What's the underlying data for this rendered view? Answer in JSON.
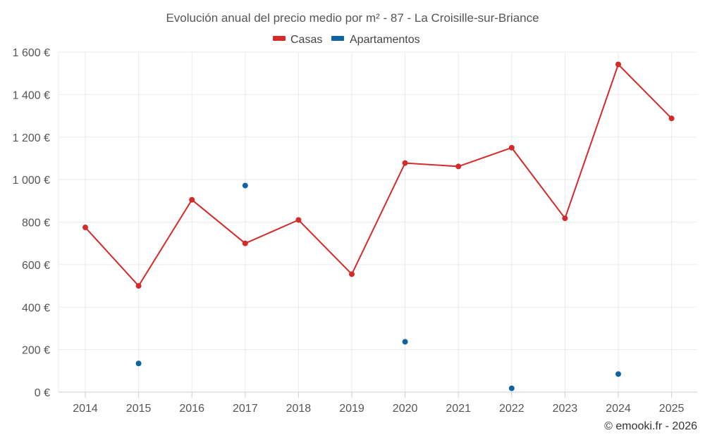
{
  "chart_data": {
    "type": "line",
    "title": "Evolución anual del precio medio por m² - 87 - La Croisille-sur-Briance",
    "categories": [
      "2014",
      "2015",
      "2016",
      "2017",
      "2018",
      "2019",
      "2020",
      "2021",
      "2022",
      "2023",
      "2024",
      "2025"
    ],
    "series": [
      {
        "name": "Casas",
        "color": "#d42a2a",
        "style": "line",
        "values": [
          775,
          500,
          905,
          700,
          810,
          555,
          1078,
          1062,
          1150,
          818,
          1542,
          1288
        ]
      },
      {
        "name": "Apartamentos",
        "color": "#0e64a0",
        "style": "points",
        "values": [
          null,
          135,
          null,
          972,
          null,
          null,
          237,
          null,
          18,
          null,
          85,
          null
        ]
      }
    ],
    "ylim": [
      0,
      1600
    ],
    "yticks": [
      0,
      200,
      400,
      600,
      800,
      1000,
      1200,
      1400,
      1600
    ],
    "ytick_labels": [
      "0 €",
      "200 €",
      "400 €",
      "600 €",
      "800 €",
      "1 000 €",
      "1 200 €",
      "1 400 €",
      "1 600 €"
    ],
    "grid": true,
    "legend_position": "top-center",
    "xlabel": "",
    "ylabel": ""
  },
  "credit": "© emooki.fr - 2026"
}
